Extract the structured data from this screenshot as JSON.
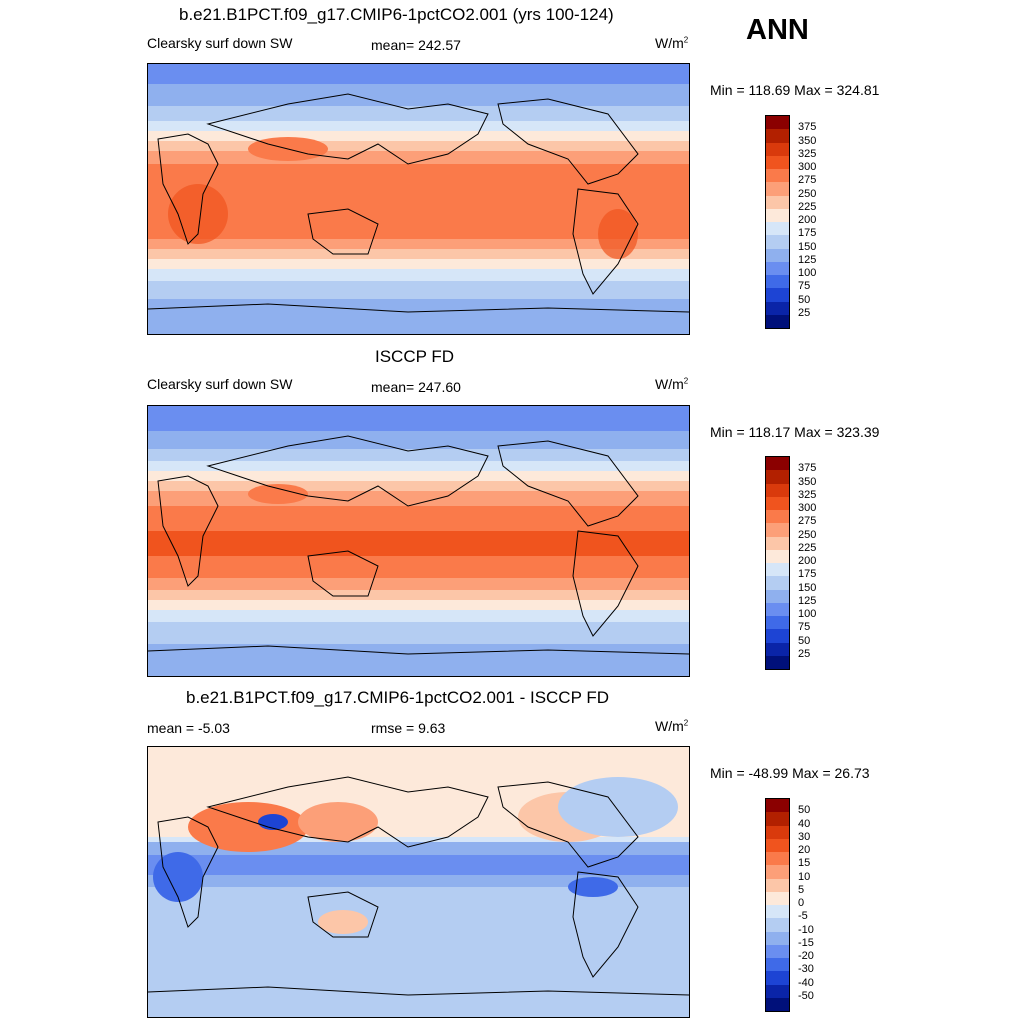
{
  "season": "ANN",
  "panels": [
    {
      "title": "b.e21.B1PCT.f09_g17.CMIP6-1pctCO2.001 (yrs 100-124)",
      "left_label": "Clearsky surf down SW",
      "center_label": "mean= 242.57",
      "units": "W/m",
      "units_sup": "2",
      "minmax": "Min = 118.69 Max = 324.81",
      "colorbar_labels": [
        "375",
        "350",
        "325",
        "300",
        "275",
        "250",
        "225",
        "200",
        "175",
        "150",
        "125",
        "100",
        "75",
        "50",
        "25"
      ]
    },
    {
      "title": "ISCCP FD",
      "left_label": "Clearsky surf down SW",
      "center_label": "mean= 247.60",
      "units": "W/m",
      "units_sup": "2",
      "minmax": "Min = 118.17 Max = 323.39",
      "colorbar_labels": [
        "375",
        "350",
        "325",
        "300",
        "275",
        "250",
        "225",
        "200",
        "175",
        "150",
        "125",
        "100",
        "75",
        "50",
        "25"
      ]
    },
    {
      "title": "b.e21.B1PCT.f09_g17.CMIP6-1pctCO2.001 - ISCCP FD",
      "left_label": "mean =  -5.03",
      "center_label": "rmse =   9.63",
      "units": "W/m",
      "units_sup": "2",
      "minmax": "Min = -48.99 Max =  26.73",
      "colorbar_labels": [
        "50",
        "40",
        "30",
        "20",
        "15",
        "10",
        "5",
        "0",
        "-5",
        "-10",
        "-15",
        "-20",
        "-30",
        "-40",
        "-50"
      ]
    }
  ],
  "colors": {
    "field_scale": [
      "#8b0000",
      "#b22000",
      "#d93a0c",
      "#f0541e",
      "#fa7a4a",
      "#fc9f78",
      "#fcc6a8",
      "#fde9da",
      "#d6e6f8",
      "#b4cdf2",
      "#8fb0ee",
      "#6a8ef0",
      "#3f6ae8",
      "#1d44d4",
      "#0a24a8",
      "#00107a"
    ],
    "diff_scale": [
      "#8b0000",
      "#b22000",
      "#d93a0c",
      "#f0541e",
      "#fa7a4a",
      "#fc9f78",
      "#fcc6a8",
      "#fde9da",
      "#d6e6f8",
      "#b4cdf2",
      "#8fb0ee",
      "#6a8ef0",
      "#3f6ae8",
      "#1d44d4",
      "#0a24a8",
      "#00107a"
    ]
  }
}
